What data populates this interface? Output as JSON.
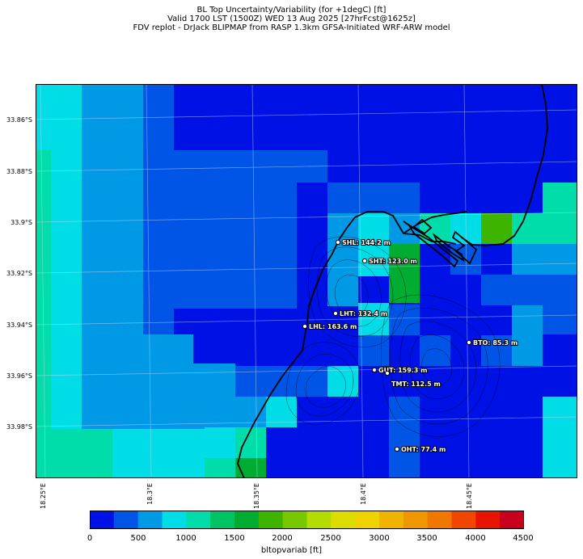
{
  "header": {
    "line1": "BL Top Uncertainty/Variability (for +1degC) [ft]",
    "line2": "Valid 1700 LST (1500Z) WED 13 Aug 2025 [27hrFcst@1625z]",
    "line3": "FDV replot - DrJack BLIPMAP from RASP 1.3km GFSA-Initiated WRF-ARW model"
  },
  "lat_labels": [
    "33.86°S",
    "33.88°S",
    "33.9°S",
    "33.92°S",
    "33.94°S",
    "33.96°S",
    "33.98°S"
  ],
  "lon_labels": [
    "18.25°E",
    "18.3°E",
    "18.35°E",
    "18.4°E",
    "18.45°E"
  ],
  "stations": [
    {
      "label": "SHL: 144.2 m"
    },
    {
      "label": "SHT: 123.0 m"
    },
    {
      "label": "LHT: 132.4 m"
    },
    {
      "label": "LHL: 163.6 m"
    },
    {
      "label": "BTO: 85.3 m"
    },
    {
      "label": "GUT: 159.3 m"
    },
    {
      "label": "TMT: 112.5 m"
    },
    {
      "label": "OHT: 77.4 m"
    }
  ],
  "colorbar": {
    "ticks": [
      "0",
      "500",
      "1000",
      "1500",
      "2000",
      "2500",
      "3000",
      "3500",
      "4000",
      "4500"
    ],
    "title": "bltopvariab [ft]",
    "colors": [
      "#0011e6",
      "#0055e6",
      "#0099e6",
      "#00dde6",
      "#00dcaa",
      "#00c464",
      "#00ac32",
      "#3cb400",
      "#78c800",
      "#b4dc00",
      "#dcdc00",
      "#f0d200",
      "#f0b400",
      "#f09600",
      "#f07800",
      "#f04600",
      "#e61400",
      "#c8001e"
    ]
  },
  "legend_colors": {
    "c0": "#0011e6",
    "c1": "#0055e6",
    "c2": "#0099e6",
    "c3": "#00dde6",
    "c4": "#00dcaa",
    "c6": "#00ac32",
    "c7": "#3cb400"
  }
}
